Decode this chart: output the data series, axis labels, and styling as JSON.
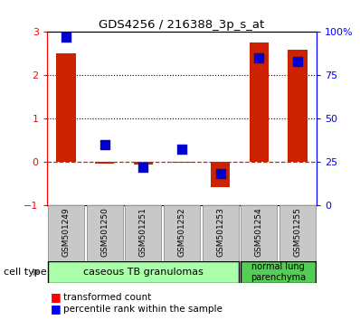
{
  "title": "GDS4256 / 216388_3p_s_at",
  "samples": [
    "GSM501249",
    "GSM501250",
    "GSM501251",
    "GSM501252",
    "GSM501253",
    "GSM501254",
    "GSM501255"
  ],
  "transformed_count": [
    2.5,
    -0.05,
    -0.07,
    -0.02,
    -0.6,
    2.75,
    2.6
  ],
  "percentile_rank": [
    97,
    35,
    22,
    32,
    18,
    85,
    83
  ],
  "ylim_left": [
    -1,
    3
  ],
  "ylim_right": [
    0,
    100
  ],
  "yticks_left": [
    -1,
    0,
    1,
    2,
    3
  ],
  "yticks_right": [
    0,
    25,
    50,
    75,
    100
  ],
  "ytick_labels_right": [
    "0",
    "25",
    "50",
    "75",
    "100%"
  ],
  "bar_color": "#cc2200",
  "dot_color": "#0000cc",
  "bar_width": 0.5,
  "dot_size": 45,
  "group1_indices": [
    0,
    1,
    2,
    3,
    4
  ],
  "group1_label": "caseous TB granulomas",
  "group1_color": "#aaffaa",
  "group2_indices": [
    5,
    6
  ],
  "group2_label": "normal lung\nparenchyma",
  "group2_color": "#55cc55",
  "cell_type_label": "cell type",
  "legend_bar_label": "transformed count",
  "legend_dot_label": "percentile rank within the sample",
  "sample_box_color": "#c8c8c8",
  "sample_box_edge": "#999999"
}
